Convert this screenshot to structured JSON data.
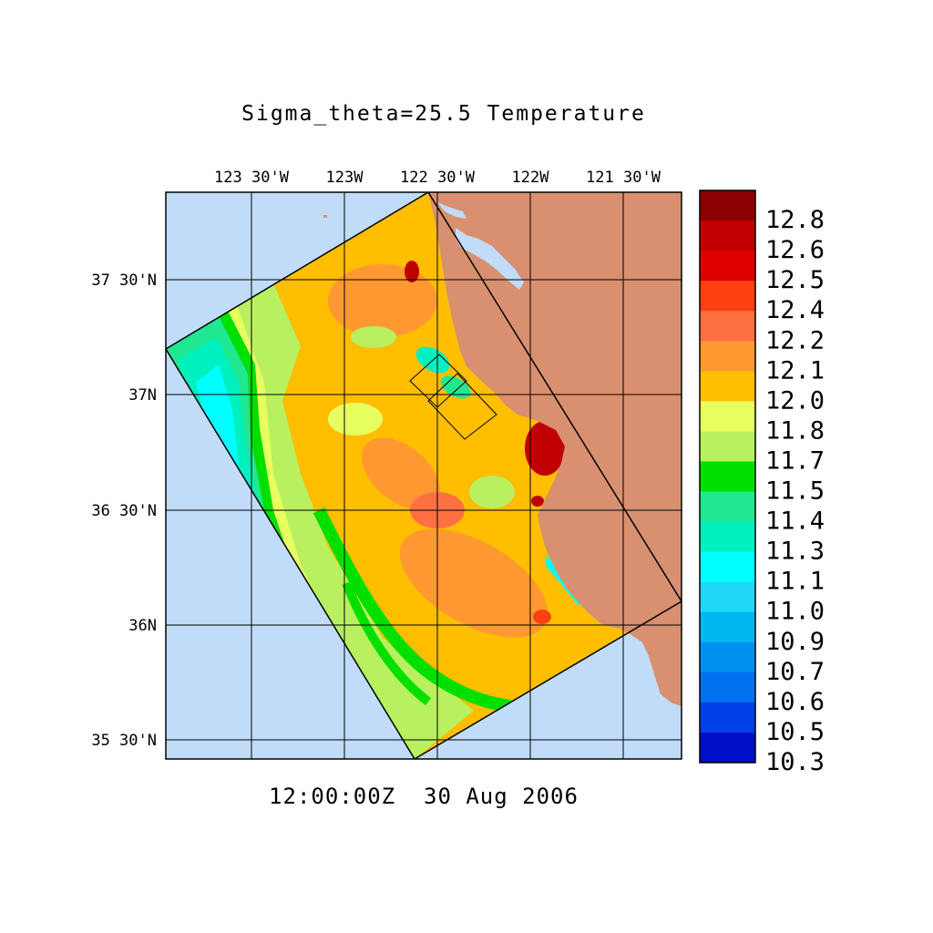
{
  "title": "Sigma_theta=25.5 Temperature",
  "timestamp": "12:00:00Z  30 Aug 2006",
  "axes": {
    "top_ticks": [
      "123 30'W",
      "123W",
      "122 30'W",
      "122W",
      "121 30'W"
    ],
    "left_ticks": [
      "37 30'N",
      "37N",
      "36 30'N",
      "36N",
      "35 30'N"
    ]
  },
  "colorbar": {
    "labels": [
      "12.8",
      "12.6",
      "12.5",
      "12.4",
      "12.2",
      "12.1",
      "12.0",
      "11.8",
      "11.7",
      "11.5",
      "11.4",
      "11.3",
      "11.1",
      "11.0",
      "10.9",
      "10.7",
      "10.6",
      "10.5",
      "10.3"
    ],
    "colors": [
      "#8b0000",
      "#c00000",
      "#e00000",
      "#ff4010",
      "#ff7040",
      "#ff9830",
      "#ffbe00",
      "#e8ff60",
      "#b8f060",
      "#00e000",
      "#20e890",
      "#00f0c0",
      "#00ffff",
      "#20d8f8",
      "#00b8f0",
      "#0090f0",
      "#0070f0",
      "#0040e8",
      "#0010c8"
    ]
  },
  "map_colors": {
    "ocean": "#c0dcf8",
    "land": "#d89070",
    "grid": "#000000",
    "domain_outline": "#000000"
  }
}
